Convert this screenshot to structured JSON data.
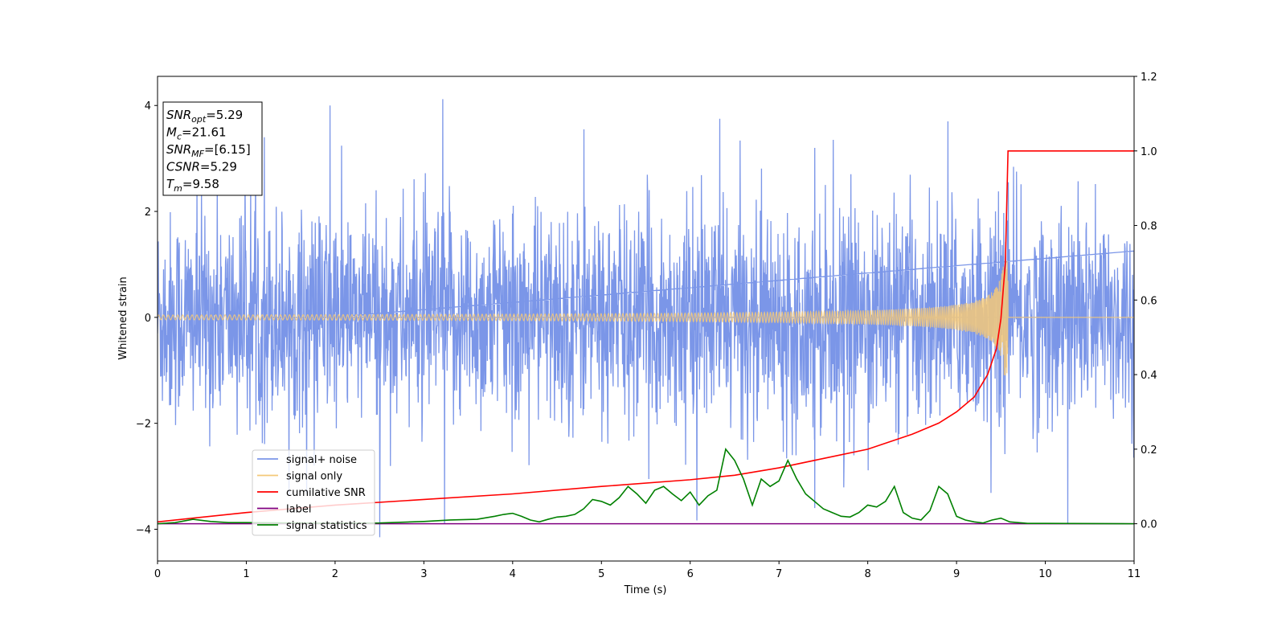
{
  "chart_data": {
    "type": "line",
    "xlabel": "Time (s)",
    "ylabel": "Whitened strain",
    "xlim": [
      0,
      11
    ],
    "ylim": [
      -4.6,
      4.55
    ],
    "y2lim": [
      -0.1,
      1.2
    ],
    "x_ticks": [
      "0",
      "1",
      "2",
      "3",
      "4",
      "5",
      "6",
      "7",
      "8",
      "9",
      "10",
      "11"
    ],
    "y_ticks": [
      "−4",
      "−2",
      "0",
      "2",
      "4"
    ],
    "y2_ticks": [
      "0.0",
      "0.2",
      "0.4",
      "0.6",
      "0.8",
      "1.0",
      "1.2"
    ],
    "grid": false,
    "legend_position": "lower-left",
    "colors": {
      "signal_noise": "#7b96e8",
      "signal_only": "#f4c979",
      "cumulative_snr": "#ff0000",
      "label": "#800080",
      "signal_statistics": "#008000"
    },
    "annotation": [
      {
        "sym": "SNR",
        "sub": "opt",
        "rest": "=5.29"
      },
      {
        "sym": "M",
        "sub": "c",
        "rest": "=21.61"
      },
      {
        "sym": "SNR",
        "sub": "MF",
        "rest": "=[6.15]"
      },
      {
        "sym": "CSNR",
        "sub": "",
        "rest": "=5.29"
      },
      {
        "sym": "T",
        "sub": "m",
        "rest": "=9.58"
      }
    ],
    "series": [
      {
        "name": "signal+ noise",
        "axis": "left",
        "style": "noise",
        "noise_sigma": 1.0,
        "t_start": 0,
        "t_end": 11,
        "notable_peaks": [
          [
            1.94,
            4.0
          ],
          [
            3.21,
            4.12
          ],
          [
            6.33,
            3.75
          ],
          [
            7.4,
            3.2
          ],
          [
            1.2,
            3.4
          ],
          [
            2.5,
            -4.15
          ],
          [
            3.23,
            -3.9
          ],
          [
            4.8,
            3.55
          ],
          [
            8.9,
            3.7
          ],
          [
            9.58,
            2.55
          ],
          [
            10.25,
            -3.9
          ],
          [
            7.4,
            -3.6
          ]
        ]
      },
      {
        "name": "signal only",
        "axis": "left",
        "style": "chirp",
        "t_end": 9.58,
        "peak_amplitude": 1.1
      },
      {
        "name": "cumilative SNR",
        "axis": "right",
        "x": [
          0,
          1,
          2,
          3,
          4,
          5,
          6,
          6.5,
          7,
          7.5,
          8,
          8.5,
          8.8,
          9.0,
          9.2,
          9.35,
          9.45,
          9.5,
          9.55,
          9.58,
          11
        ],
        "y": [
          0.005,
          0.03,
          0.05,
          0.065,
          0.08,
          0.1,
          0.118,
          0.13,
          0.15,
          0.175,
          0.2,
          0.24,
          0.27,
          0.3,
          0.34,
          0.4,
          0.47,
          0.55,
          0.7,
          1.0,
          1.0
        ]
      },
      {
        "name": "label",
        "axis": "right",
        "x": [
          0,
          11
        ],
        "y": [
          0.0,
          0.0
        ]
      },
      {
        "name": "signal statistics",
        "axis": "right",
        "x": [
          0,
          0.2,
          0.4,
          0.6,
          0.8,
          1.0,
          1.5,
          2.0,
          2.5,
          3.0,
          3.3,
          3.6,
          3.8,
          3.9,
          4.0,
          4.1,
          4.2,
          4.3,
          4.4,
          4.5,
          4.6,
          4.7,
          4.8,
          4.9,
          5.0,
          5.1,
          5.2,
          5.3,
          5.4,
          5.5,
          5.6,
          5.7,
          5.8,
          5.9,
          6.0,
          6.1,
          6.2,
          6.3,
          6.4,
          6.5,
          6.6,
          6.7,
          6.8,
          6.9,
          7.0,
          7.1,
          7.2,
          7.3,
          7.4,
          7.5,
          7.6,
          7.7,
          7.8,
          7.9,
          8.0,
          8.1,
          8.2,
          8.3,
          8.4,
          8.5,
          8.6,
          8.7,
          8.8,
          8.9,
          9.0,
          9.1,
          9.2,
          9.3,
          9.4,
          9.5,
          9.6,
          9.8,
          10.0,
          11.0
        ],
        "y": [
          0.0,
          0.003,
          0.012,
          0.006,
          0.003,
          0.003,
          0.002,
          0.001,
          0.002,
          0.006,
          0.01,
          0.012,
          0.02,
          0.025,
          0.028,
          0.02,
          0.01,
          0.005,
          0.012,
          0.018,
          0.02,
          0.025,
          0.04,
          0.065,
          0.06,
          0.05,
          0.07,
          0.1,
          0.08,
          0.055,
          0.09,
          0.1,
          0.08,
          0.062,
          0.085,
          0.05,
          0.075,
          0.09,
          0.2,
          0.17,
          0.12,
          0.05,
          0.12,
          0.1,
          0.115,
          0.17,
          0.12,
          0.08,
          0.06,
          0.04,
          0.03,
          0.02,
          0.018,
          0.03,
          0.05,
          0.045,
          0.06,
          0.1,
          0.03,
          0.015,
          0.01,
          0.035,
          0.1,
          0.08,
          0.02,
          0.01,
          0.005,
          0.002,
          0.01,
          0.015,
          0.005,
          0.001,
          0.001,
          0.0
        ]
      }
    ]
  }
}
